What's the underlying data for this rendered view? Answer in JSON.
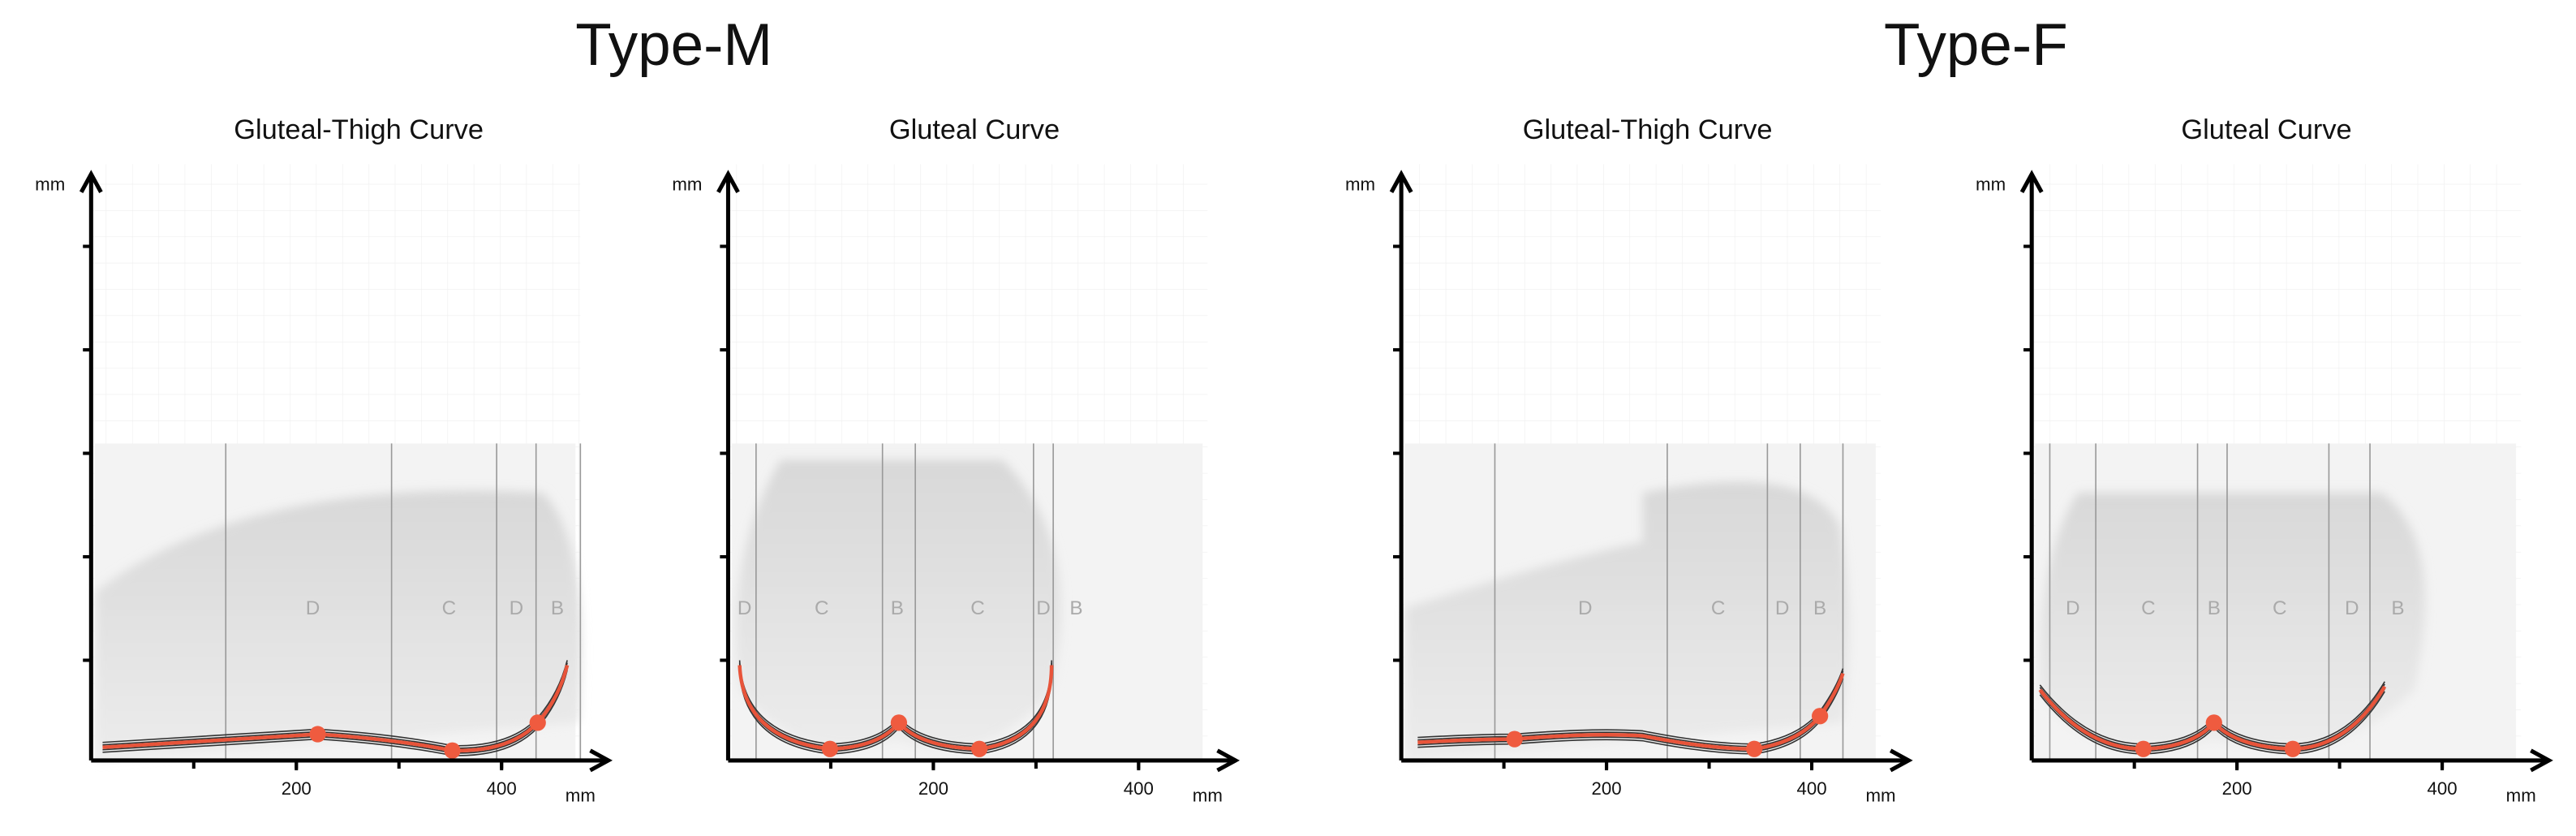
{
  "titles": [
    "Type-M",
    "Type-F"
  ],
  "panels": [
    {
      "title": "Gluteal-Thigh Curve",
      "y_unit": "mm",
      "x_unit": "mm",
      "xticks": [
        200,
        400
      ],
      "regions": [
        "D",
        "C",
        "D",
        "B"
      ]
    },
    {
      "title": "Gluteal Curve",
      "y_unit": "mm",
      "x_unit": "mm",
      "xticks": [
        200,
        400
      ],
      "regions": [
        "D",
        "C",
        "B",
        "C",
        "D",
        "B"
      ]
    },
    {
      "title": "Gluteal-Thigh Curve",
      "y_unit": "mm",
      "x_unit": "mm",
      "xticks": [
        200,
        400
      ],
      "regions": [
        "D",
        "C",
        "D",
        "B"
      ]
    },
    {
      "title": "Gluteal Curve",
      "y_unit": "mm",
      "x_unit": "mm",
      "xticks": [
        200,
        400
      ],
      "regions": [
        "D",
        "C",
        "B",
        "C",
        "D",
        "B"
      ]
    }
  ]
}
